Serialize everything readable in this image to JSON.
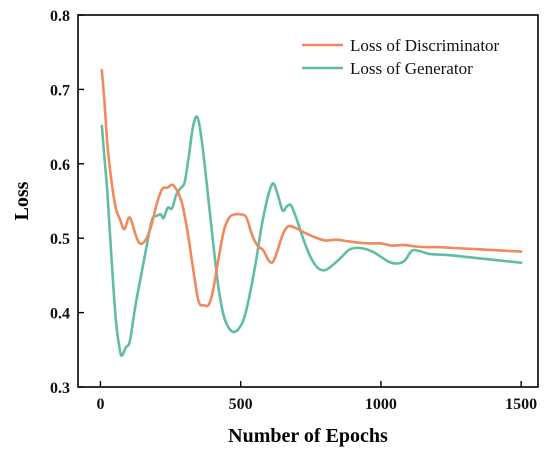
{
  "chart_data": {
    "type": "line",
    "title": "",
    "xlabel": "Number of Epochs",
    "ylabel": "Loss",
    "xlim": [
      -80,
      1560
    ],
    "ylim": [
      0.3,
      0.8
    ],
    "x_ticks": [
      0,
      500,
      1000,
      1500
    ],
    "y_ticks": [
      0.3,
      0.4,
      0.5,
      0.6,
      0.7,
      0.8
    ],
    "x_tick_labels": [
      "0",
      "500",
      "1000",
      "1500"
    ],
    "y_tick_labels": [
      "0.3",
      "0.4",
      "0.5",
      "0.6",
      "0.7",
      "0.8"
    ],
    "grid": false,
    "legend_position": "top-right",
    "series": [
      {
        "name": "Loss of Discriminator",
        "color": "#f08a5d",
        "points": [
          [
            5,
            0.726
          ],
          [
            15,
            0.68
          ],
          [
            25,
            0.625
          ],
          [
            40,
            0.575
          ],
          [
            55,
            0.54
          ],
          [
            70,
            0.525
          ],
          [
            85,
            0.512
          ],
          [
            100,
            0.527
          ],
          [
            110,
            0.524
          ],
          [
            125,
            0.505
          ],
          [
            140,
            0.493
          ],
          [
            160,
            0.497
          ],
          [
            180,
            0.515
          ],
          [
            200,
            0.545
          ],
          [
            220,
            0.566
          ],
          [
            240,
            0.568
          ],
          [
            255,
            0.572
          ],
          [
            270,
            0.566
          ],
          [
            290,
            0.548
          ],
          [
            310,
            0.51
          ],
          [
            330,
            0.46
          ],
          [
            350,
            0.415
          ],
          [
            370,
            0.41
          ],
          [
            385,
            0.41
          ],
          [
            400,
            0.427
          ],
          [
            420,
            0.47
          ],
          [
            440,
            0.51
          ],
          [
            460,
            0.528
          ],
          [
            480,
            0.532
          ],
          [
            500,
            0.532
          ],
          [
            520,
            0.528
          ],
          [
            540,
            0.505
          ],
          [
            560,
            0.49
          ],
          [
            580,
            0.484
          ],
          [
            600,
            0.47
          ],
          [
            615,
            0.468
          ],
          [
            630,
            0.482
          ],
          [
            650,
            0.505
          ],
          [
            670,
            0.516
          ],
          [
            700,
            0.513
          ],
          [
            730,
            0.507
          ],
          [
            760,
            0.502
          ],
          [
            800,
            0.497
          ],
          [
            840,
            0.498
          ],
          [
            880,
            0.496
          ],
          [
            920,
            0.494
          ],
          [
            960,
            0.493
          ],
          [
            1000,
            0.493
          ],
          [
            1040,
            0.49
          ],
          [
            1080,
            0.491
          ],
          [
            1120,
            0.489
          ],
          [
            1160,
            0.488
          ],
          [
            1200,
            0.488
          ],
          [
            1250,
            0.487
          ],
          [
            1300,
            0.486
          ],
          [
            1350,
            0.485
          ],
          [
            1400,
            0.484
          ],
          [
            1450,
            0.483
          ],
          [
            1500,
            0.482
          ]
        ]
      },
      {
        "name": "Loss of Generator",
        "color": "#5fbea2",
        "points": [
          [
            5,
            0.651
          ],
          [
            15,
            0.605
          ],
          [
            25,
            0.56
          ],
          [
            40,
            0.47
          ],
          [
            55,
            0.39
          ],
          [
            70,
            0.348
          ],
          [
            78,
            0.343
          ],
          [
            90,
            0.353
          ],
          [
            105,
            0.362
          ],
          [
            125,
            0.41
          ],
          [
            150,
            0.46
          ],
          [
            170,
            0.5
          ],
          [
            185,
            0.526
          ],
          [
            200,
            0.53
          ],
          [
            215,
            0.532
          ],
          [
            225,
            0.527
          ],
          [
            240,
            0.541
          ],
          [
            255,
            0.54
          ],
          [
            270,
            0.558
          ],
          [
            285,
            0.567
          ],
          [
            300,
            0.575
          ],
          [
            315,
            0.61
          ],
          [
            330,
            0.65
          ],
          [
            345,
            0.663
          ],
          [
            360,
            0.635
          ],
          [
            380,
            0.57
          ],
          [
            400,
            0.5
          ],
          [
            420,
            0.436
          ],
          [
            440,
            0.395
          ],
          [
            460,
            0.378
          ],
          [
            475,
            0.374
          ],
          [
            490,
            0.377
          ],
          [
            510,
            0.39
          ],
          [
            530,
            0.42
          ],
          [
            555,
            0.47
          ],
          [
            575,
            0.517
          ],
          [
            595,
            0.553
          ],
          [
            610,
            0.571
          ],
          [
            620,
            0.572
          ],
          [
            635,
            0.555
          ],
          [
            650,
            0.537
          ],
          [
            665,
            0.543
          ],
          [
            680,
            0.544
          ],
          [
            700,
            0.525
          ],
          [
            725,
            0.497
          ],
          [
            750,
            0.474
          ],
          [
            775,
            0.46
          ],
          [
            800,
            0.457
          ],
          [
            825,
            0.463
          ],
          [
            855,
            0.473
          ],
          [
            885,
            0.484
          ],
          [
            910,
            0.487
          ],
          [
            940,
            0.486
          ],
          [
            970,
            0.482
          ],
          [
            1000,
            0.475
          ],
          [
            1030,
            0.468
          ],
          [
            1060,
            0.466
          ],
          [
            1085,
            0.47
          ],
          [
            1110,
            0.483
          ],
          [
            1135,
            0.483
          ],
          [
            1170,
            0.479
          ],
          [
            1210,
            0.478
          ],
          [
            1250,
            0.477
          ],
          [
            1300,
            0.475
          ],
          [
            1350,
            0.473
          ],
          [
            1400,
            0.471
          ],
          [
            1450,
            0.469
          ],
          [
            1500,
            0.467
          ]
        ]
      }
    ]
  }
}
